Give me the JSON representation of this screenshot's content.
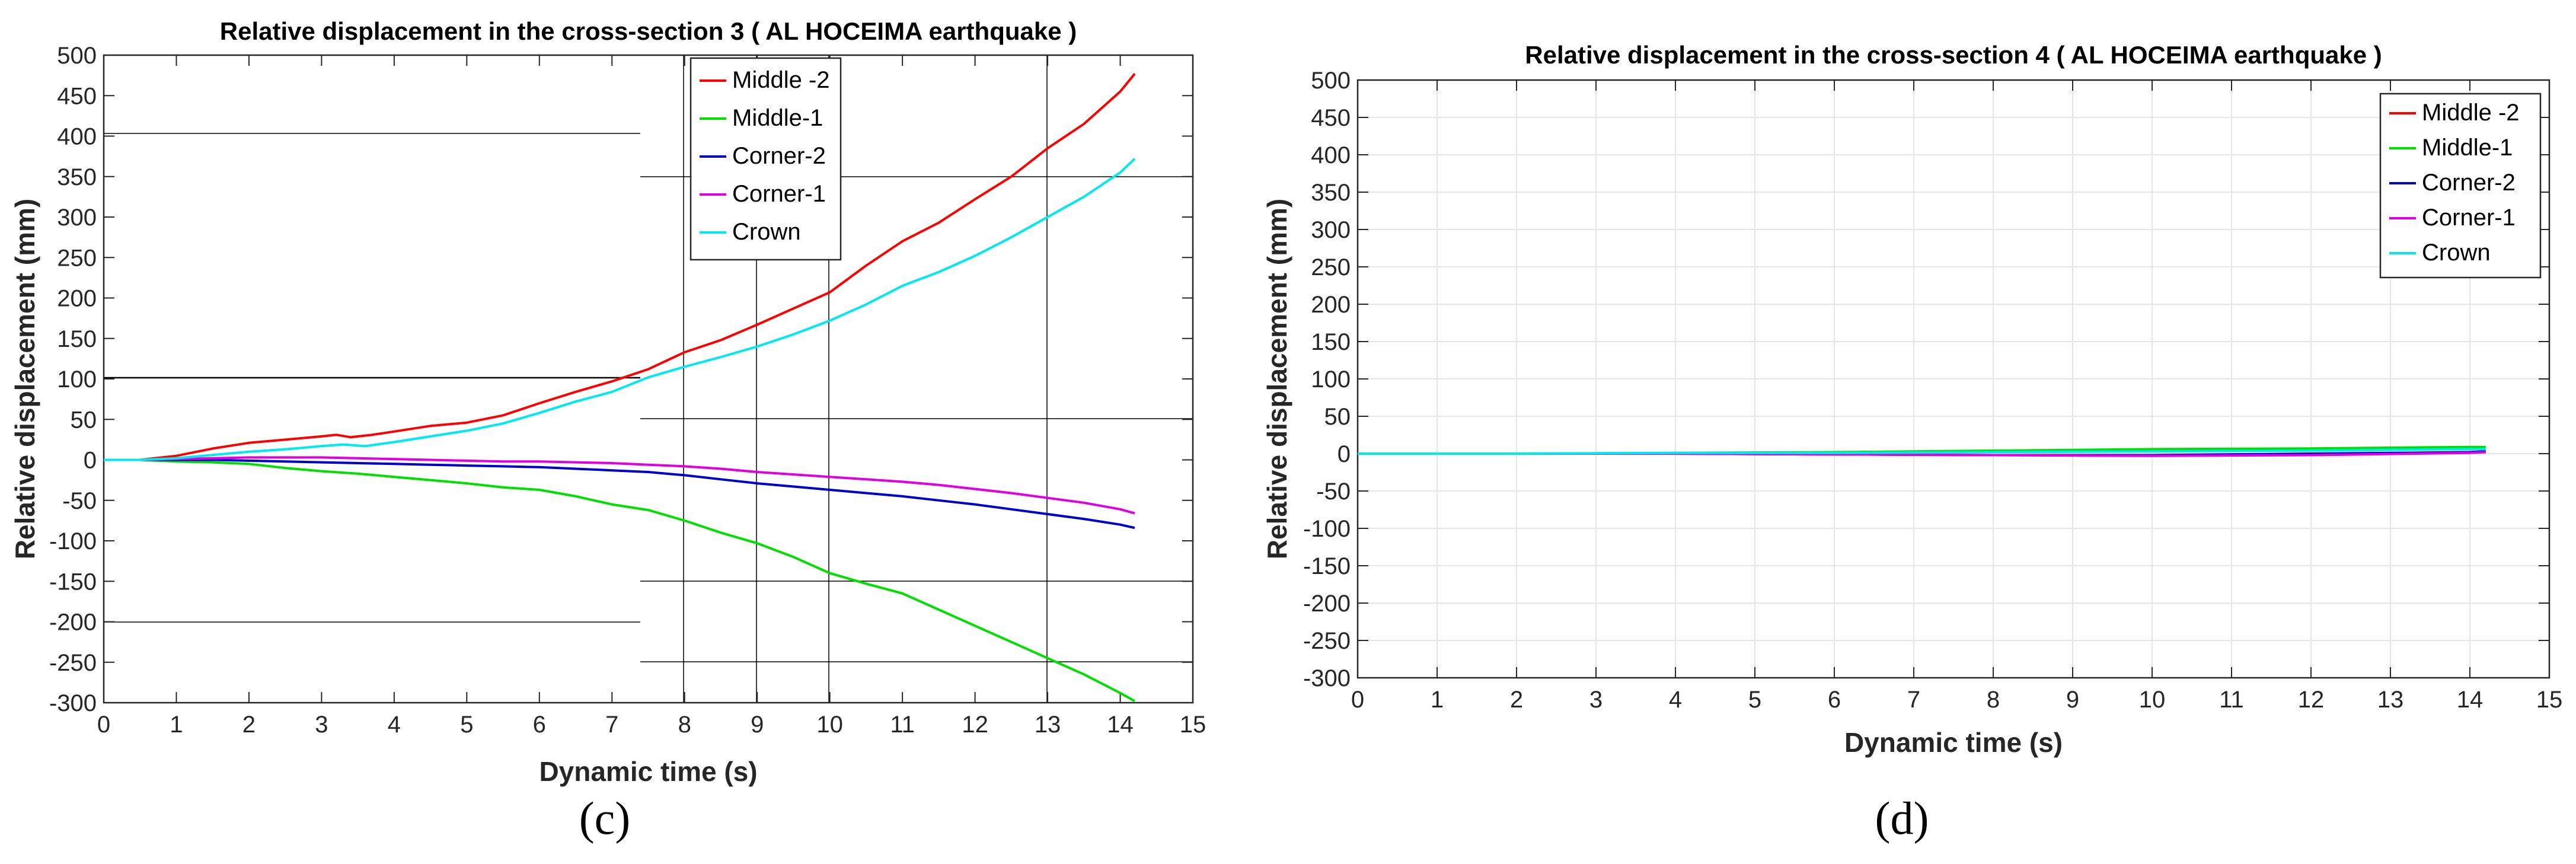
{
  "captions": {
    "left": "(c)",
    "right": "(d)"
  },
  "chart_data": [
    {
      "type": "line",
      "title": "Relative displacement in the cross-section 3 ( AL HOCEIMA earthquake )",
      "xlabel": "Dynamic time (s)",
      "ylabel": "Relative displacement (mm)",
      "xlim": [
        0,
        15
      ],
      "ylim": [
        -300,
        500
      ],
      "xticks": [
        0,
        1,
        2,
        3,
        4,
        5,
        6,
        7,
        8,
        9,
        10,
        11,
        12,
        13,
        14,
        15
      ],
      "yticks": [
        -300,
        -250,
        -200,
        -150,
        -100,
        -50,
        0,
        50,
        100,
        150,
        200,
        250,
        300,
        350,
        400,
        450,
        500
      ],
      "grid": false,
      "legend": "top-center",
      "series": [
        {
          "name": "Middle -2",
          "color": "#ff0000",
          "x": [
            0,
            0.5,
            1,
            1.5,
            2,
            2.5,
            3,
            3.2,
            3.4,
            3.7,
            4,
            4.5,
            5,
            5.5,
            6,
            6.5,
            7,
            7.5,
            8,
            8.5,
            9,
            9.5,
            10,
            10.5,
            11,
            11.5,
            12,
            12.5,
            13,
            13.5,
            14,
            14.2
          ],
          "y": [
            0,
            0,
            5,
            14,
            21,
            25,
            29,
            31,
            28,
            31,
            35,
            42,
            46,
            55,
            70,
            84,
            97,
            112,
            133,
            148,
            167,
            187,
            207,
            240,
            270,
            293,
            322,
            350,
            385,
            415,
            455,
            477
          ]
        },
        {
          "name": "Middle-1",
          "color": "#00e000",
          "x": [
            0,
            0.5,
            1,
            1.5,
            2,
            2.5,
            3,
            3.5,
            4,
            4.5,
            5,
            5.5,
            6,
            6.5,
            7,
            7.5,
            8,
            8.5,
            9,
            9.5,
            10,
            10.5,
            11,
            11.5,
            12,
            12.5,
            13,
            13.5,
            14,
            14.2
          ],
          "y": [
            0,
            0,
            -2,
            -3,
            -5,
            -10,
            -14,
            -17,
            -21,
            -25,
            -29,
            -34,
            -37,
            -45,
            -55,
            -62,
            -75,
            -90,
            -103,
            -120,
            -140,
            -153,
            -165,
            -185,
            -205,
            -225,
            -245,
            -265,
            -288,
            -298
          ]
        },
        {
          "name": "Corner-2",
          "color": "#0000cc",
          "x": [
            0,
            0.5,
            1,
            1.5,
            2,
            2.5,
            3,
            3.5,
            4,
            4.5,
            5,
            5.5,
            6,
            6.5,
            7,
            7.5,
            8,
            8.5,
            9,
            9.5,
            10,
            10.5,
            11,
            11.5,
            12,
            12.5,
            13,
            13.5,
            14,
            14.2
          ],
          "y": [
            0,
            0,
            0,
            0,
            -1,
            -2,
            -3,
            -4,
            -5,
            -6,
            -7,
            -8,
            -9,
            -11,
            -13,
            -15,
            -19,
            -24,
            -29,
            -33,
            -37,
            -41,
            -45,
            -50,
            -55,
            -61,
            -67,
            -73,
            -80,
            -84
          ]
        },
        {
          "name": "Corner-1",
          "color": "#e000e0",
          "x": [
            0,
            0.5,
            1,
            1.5,
            2,
            2.5,
            3,
            3.5,
            4,
            4.5,
            5,
            5.5,
            6,
            6.5,
            7,
            7.5,
            8,
            8.5,
            9,
            9.5,
            10,
            10.5,
            11,
            11.5,
            12,
            12.5,
            13,
            13.5,
            14,
            14.2
          ],
          "y": [
            0,
            0,
            1,
            2,
            3,
            3,
            3,
            2,
            1,
            0,
            -1,
            -2,
            -2,
            -3,
            -4,
            -6,
            -8,
            -11,
            -15,
            -18,
            -21,
            -24,
            -27,
            -31,
            -36,
            -41,
            -47,
            -53,
            -61,
            -66
          ]
        },
        {
          "name": "Crown",
          "color": "#00e8f0",
          "x": [
            0,
            0.5,
            1,
            1.5,
            2,
            2.5,
            3,
            3.3,
            3.6,
            4,
            4.5,
            5,
            5.5,
            6,
            6.5,
            7,
            7.5,
            8,
            8.5,
            9,
            9.5,
            10,
            10.5,
            11,
            11.5,
            12,
            12.5,
            13,
            13.5,
            14,
            14.2
          ],
          "y": [
            0,
            0,
            2,
            6,
            10,
            13,
            17,
            19,
            17,
            22,
            29,
            36,
            45,
            58,
            72,
            84,
            102,
            115,
            127,
            140,
            155,
            172,
            192,
            215,
            232,
            252,
            275,
            300,
            325,
            355,
            372
          ]
        }
      ]
    },
    {
      "type": "line",
      "title": "Relative displacement in the cross-section 4 ( AL HOCEIMA earthquake )",
      "xlabel": "Dynamic time (s)",
      "ylabel": "Relative displacement (mm)",
      "xlim": [
        0,
        15
      ],
      "ylim": [
        -300,
        500
      ],
      "xticks": [
        0,
        1,
        2,
        3,
        4,
        5,
        6,
        7,
        8,
        9,
        10,
        11,
        12,
        13,
        14,
        15
      ],
      "yticks": [
        -300,
        -250,
        -200,
        -150,
        -100,
        -50,
        0,
        50,
        100,
        150,
        200,
        250,
        300,
        350,
        400,
        450,
        500
      ],
      "grid": true,
      "legend": "top-right",
      "series": [
        {
          "name": "Middle -2",
          "color": "#ff0000",
          "x": [
            0,
            2,
            4,
            6,
            8,
            10,
            12,
            14,
            14.2
          ],
          "y": [
            0,
            0,
            0,
            -1,
            -2,
            -2,
            -1,
            2,
            3
          ]
        },
        {
          "name": "Middle-1",
          "color": "#00e000",
          "x": [
            0,
            2,
            4,
            6,
            8,
            10,
            12,
            14,
            14.2
          ],
          "y": [
            0,
            0,
            1,
            2,
            4,
            6,
            7,
            9,
            9
          ]
        },
        {
          "name": "Corner-2",
          "color": "#0000cc",
          "x": [
            0,
            2,
            4,
            6,
            8,
            10,
            12,
            14,
            14.2
          ],
          "y": [
            0,
            0,
            0,
            -1,
            -2,
            -2,
            0,
            2,
            3
          ]
        },
        {
          "name": "Corner-1",
          "color": "#e000e0",
          "x": [
            0,
            2,
            4,
            6,
            8,
            10,
            12,
            14,
            14.2
          ],
          "y": [
            0,
            0,
            0,
            -1,
            -2,
            -3,
            -2,
            1,
            2
          ]
        },
        {
          "name": "Crown",
          "color": "#00e8f0",
          "x": [
            0,
            2,
            4,
            6,
            8,
            10,
            12,
            14,
            14.2
          ],
          "y": [
            0,
            0,
            1,
            1,
            2,
            3,
            4,
            6,
            6
          ]
        }
      ]
    }
  ]
}
